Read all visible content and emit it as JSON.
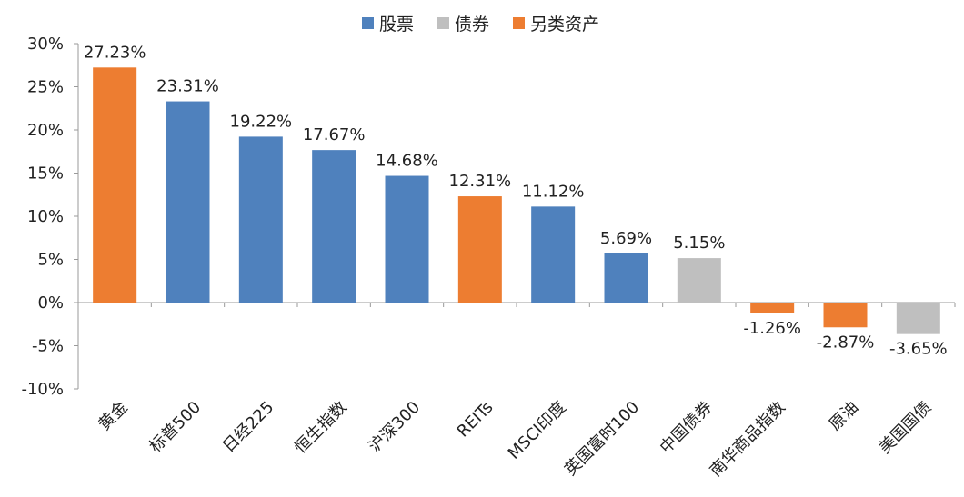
{
  "chart_data": {
    "type": "bar",
    "title": "",
    "xlabel": "",
    "ylabel": "",
    "ylim": [
      -10,
      30
    ],
    "yticks": [
      "30%",
      "25%",
      "20%",
      "15%",
      "10%",
      "5%",
      "0%",
      "-5%",
      "-10%"
    ],
    "grid": false,
    "legend_position": "top-center",
    "categories": [
      "黄金",
      "标普500",
      "日经225",
      "恒生指数",
      "沪深300",
      "REITs",
      "MSCI印度",
      "英国富时100",
      "中国债券",
      "南华商品指数",
      "原油",
      "美国国债"
    ],
    "values": [
      27.23,
      23.31,
      19.22,
      17.67,
      14.68,
      12.31,
      11.12,
      5.69,
      5.15,
      -1.26,
      -2.87,
      -3.65
    ],
    "value_labels": [
      "27.23%",
      "23.31%",
      "19.22%",
      "17.67%",
      "14.68%",
      "12.31%",
      "11.12%",
      "5.69%",
      "5.15%",
      "-1.26%",
      "-2.87%",
      "-3.65%"
    ],
    "groups": [
      "另类资产",
      "股票",
      "股票",
      "股票",
      "股票",
      "另类资产",
      "股票",
      "股票",
      "债券",
      "另类资产",
      "另类资产",
      "债券"
    ],
    "series": [
      {
        "name": "股票",
        "color": "#4F81BD"
      },
      {
        "name": "债券",
        "color": "#BFBFBF"
      },
      {
        "name": "另类资产",
        "color": "#ED7D31"
      }
    ]
  }
}
